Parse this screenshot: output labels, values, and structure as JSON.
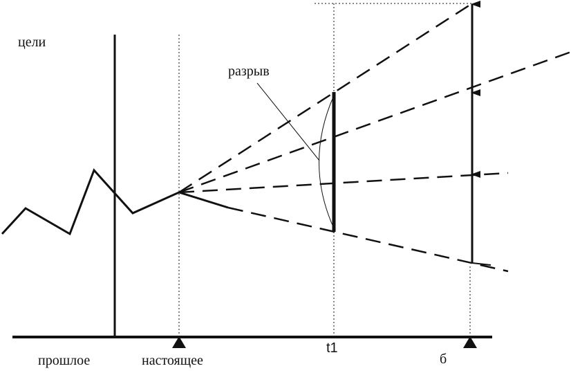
{
  "labels": {
    "goals": "цели",
    "gap": "разрыв",
    "past": "прошлое",
    "present": "настоящее",
    "t1": "t1",
    "future_fragment": "б"
  },
  "colors": {
    "line": "#111111",
    "background": "#ffffff"
  }
}
